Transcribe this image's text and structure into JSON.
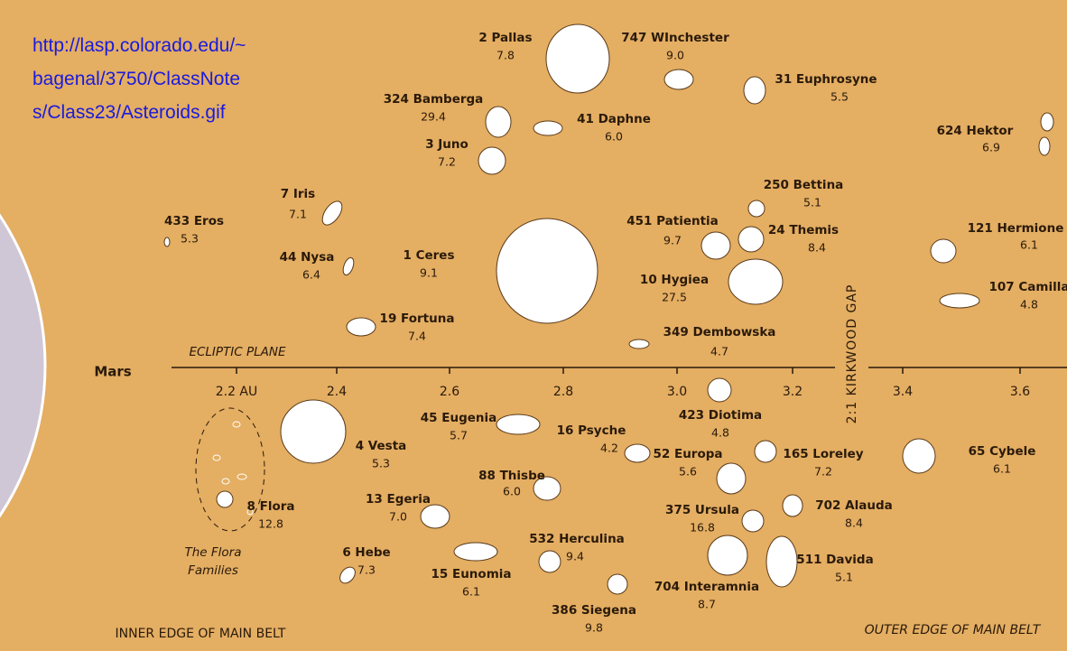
{
  "source_url": [
    "http://lasp.colorado.edu/~",
    "bagenal/3750/ClassNote",
    "s/Class23/Asteroids.gif"
  ],
  "planet": "Mars",
  "ecliptic_label": "ECLIPTIC PLANE",
  "gap_label": "2:1 KIRKWOOD GAP",
  "axis_ticks": [
    "2.2 AU",
    "2.4",
    "2.6",
    "2.8",
    "3.0",
    "3.2",
    "3.4",
    "3.6"
  ],
  "asteroids": [
    {
      "name": "2 Pallas",
      "value": "7.8"
    },
    {
      "name": "747 WInchester",
      "value": "9.0"
    },
    {
      "name": "31 Euphrosyne",
      "value": "5.5"
    },
    {
      "name": "324 Bamberga",
      "value": "29.4"
    },
    {
      "name": "41 Daphne",
      "value": "6.0"
    },
    {
      "name": "3 Juno",
      "value": "7.2"
    },
    {
      "name": "624 Hektor",
      "value": "6.9"
    },
    {
      "name": "250 Bettina",
      "value": "5.1"
    },
    {
      "name": "7 Iris",
      "value": "7.1"
    },
    {
      "name": "433 Eros",
      "value": "5.3"
    },
    {
      "name": "451 Patientia",
      "value": "9.7"
    },
    {
      "name": "24 Themis",
      "value": "8.4"
    },
    {
      "name": "121 Hermione",
      "value": "6.1"
    },
    {
      "name": "1 Ceres",
      "value": "9.1"
    },
    {
      "name": "44 Nysa",
      "value": "6.4"
    },
    {
      "name": "10 Hygiea",
      "value": "27.5"
    },
    {
      "name": "107 Camilla",
      "value": "4.8"
    },
    {
      "name": "19 Fortuna",
      "value": "7.4"
    },
    {
      "name": "349 Dembowska",
      "value": "4.7"
    },
    {
      "name": "423 Diotima",
      "value": "4.8"
    },
    {
      "name": "45 Eugenia",
      "value": "5.7"
    },
    {
      "name": "4 Vesta",
      "value": "5.3"
    },
    {
      "name": "16 Psyche",
      "value": "4.2"
    },
    {
      "name": "52 Europa",
      "value": "5.6"
    },
    {
      "name": "165 Loreley",
      "value": "7.2"
    },
    {
      "name": "65 Cybele",
      "value": "6.1"
    },
    {
      "name": "88 Thisbe",
      "value": "6.0"
    },
    {
      "name": "13 Egeria",
      "value": "7.0"
    },
    {
      "name": "8 Flora",
      "value": "12.8"
    },
    {
      "name": "375 Ursula",
      "value": "16.8"
    },
    {
      "name": "702 Alauda",
      "value": "8.4"
    },
    {
      "name": "532 Herculina",
      "value": "9.4"
    },
    {
      "name": "6 Hebe",
      "value": "7.3"
    },
    {
      "name": "15 Eunomia",
      "value": "6.1"
    },
    {
      "name": "511 Davida",
      "value": "5.1"
    },
    {
      "name": "704 Interamnia",
      "value": "8.7"
    },
    {
      "name": "386 Siegena",
      "value": "9.8"
    }
  ],
  "flora_label": [
    "The Flora",
    "Families"
  ],
  "inner_edge": "INNER EDGE OF MAIN BELT",
  "outer_edge": "OUTER EDGE OF MAIN BELT"
}
